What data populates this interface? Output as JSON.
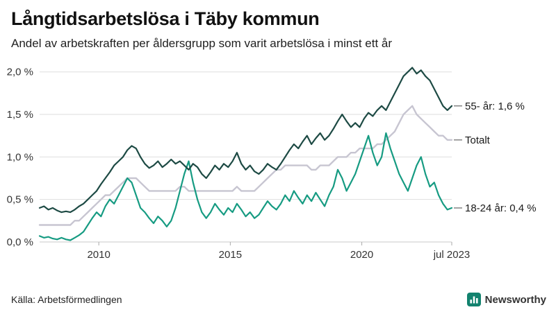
{
  "header": {
    "title": "Långtidsarbetslösa i Täby kommun",
    "subtitle": "Andel av arbetskraften per åldersgrupp som varit arbetslösa i minst ett år"
  },
  "footer": {
    "source": "Källa: Arbetsförmedlingen",
    "brand": "Newsworthy",
    "brand_color": "#12826e"
  },
  "chart_data": {
    "type": "line",
    "x_start": 2007.75,
    "x_end": 2023.42,
    "xlabel": "",
    "ylabel": "",
    "ylim": [
      0,
      2.12
    ],
    "grid": "horizontal",
    "x_ticks": [
      {
        "label": "2010",
        "x": 2010
      },
      {
        "label": "2015",
        "x": 2015
      },
      {
        "label": "2020",
        "x": 2020
      },
      {
        "label": "jul 2023",
        "x": 2023.42
      }
    ],
    "y_ticks": [
      {
        "label": "0,0 %",
        "v": 0
      },
      {
        "label": "0,5 %",
        "v": 0.5
      },
      {
        "label": "1,0 %",
        "v": 1
      },
      {
        "label": "1,5 %",
        "v": 1.5
      },
      {
        "label": "2,0 %",
        "v": 2
      }
    ],
    "series": [
      {
        "name": "55- år",
        "annotation": "55- år: 1,6 %",
        "color": "#1d4a44",
        "z": 3,
        "values": [
          0.4,
          0.42,
          0.38,
          0.4,
          0.37,
          0.35,
          0.36,
          0.35,
          0.38,
          0.42,
          0.45,
          0.5,
          0.55,
          0.6,
          0.68,
          0.75,
          0.82,
          0.9,
          0.95,
          1.0,
          1.08,
          1.13,
          1.1,
          1.0,
          0.92,
          0.87,
          0.9,
          0.95,
          0.88,
          0.92,
          0.97,
          0.92,
          0.95,
          0.9,
          0.85,
          0.92,
          0.88,
          0.8,
          0.75,
          0.82,
          0.9,
          0.85,
          0.92,
          0.88,
          0.95,
          1.05,
          0.92,
          0.85,
          0.9,
          0.83,
          0.8,
          0.85,
          0.92,
          0.88,
          0.85,
          0.92,
          1.0,
          1.08,
          1.15,
          1.1,
          1.18,
          1.25,
          1.15,
          1.22,
          1.28,
          1.2,
          1.25,
          1.33,
          1.42,
          1.5,
          1.42,
          1.35,
          1.4,
          1.35,
          1.45,
          1.52,
          1.48,
          1.55,
          1.6,
          1.55,
          1.65,
          1.75,
          1.85,
          1.95,
          2.0,
          2.05,
          1.98,
          2.02,
          1.95,
          1.9,
          1.8,
          1.7,
          1.6,
          1.55,
          1.6
        ]
      },
      {
        "name": "Totalt",
        "annotation": "Totalt",
        "color": "#c7c5d1",
        "z": 1,
        "values": [
          0.2,
          0.2,
          0.2,
          0.2,
          0.2,
          0.2,
          0.2,
          0.2,
          0.25,
          0.25,
          0.3,
          0.35,
          0.4,
          0.45,
          0.5,
          0.55,
          0.55,
          0.6,
          0.65,
          0.7,
          0.75,
          0.75,
          0.75,
          0.7,
          0.65,
          0.6,
          0.6,
          0.6,
          0.6,
          0.6,
          0.6,
          0.6,
          0.65,
          0.65,
          0.6,
          0.6,
          0.6,
          0.6,
          0.6,
          0.6,
          0.6,
          0.6,
          0.6,
          0.6,
          0.6,
          0.65,
          0.6,
          0.6,
          0.6,
          0.6,
          0.65,
          0.7,
          0.75,
          0.8,
          0.85,
          0.85,
          0.9,
          0.9,
          0.9,
          0.9,
          0.9,
          0.9,
          0.85,
          0.85,
          0.9,
          0.9,
          0.9,
          0.95,
          1.0,
          1.0,
          1.0,
          1.05,
          1.05,
          1.1,
          1.1,
          1.1,
          1.1,
          1.15,
          1.15,
          1.2,
          1.25,
          1.3,
          1.4,
          1.5,
          1.55,
          1.6,
          1.5,
          1.45,
          1.4,
          1.35,
          1.3,
          1.25,
          1.25,
          1.2,
          1.2
        ]
      },
      {
        "name": "18-24 år",
        "annotation": "18-24 år: 0,4 %",
        "color": "#169b82",
        "z": 2,
        "values": [
          0.07,
          0.05,
          0.06,
          0.04,
          0.03,
          0.05,
          0.03,
          0.02,
          0.05,
          0.08,
          0.12,
          0.2,
          0.28,
          0.35,
          0.3,
          0.42,
          0.5,
          0.45,
          0.55,
          0.65,
          0.75,
          0.7,
          0.55,
          0.4,
          0.35,
          0.28,
          0.22,
          0.3,
          0.25,
          0.18,
          0.25,
          0.4,
          0.6,
          0.8,
          0.95,
          0.7,
          0.5,
          0.35,
          0.28,
          0.35,
          0.45,
          0.38,
          0.32,
          0.4,
          0.35,
          0.45,
          0.38,
          0.3,
          0.35,
          0.28,
          0.32,
          0.4,
          0.48,
          0.42,
          0.38,
          0.45,
          0.55,
          0.48,
          0.6,
          0.52,
          0.45,
          0.55,
          0.48,
          0.58,
          0.5,
          0.42,
          0.55,
          0.65,
          0.85,
          0.75,
          0.6,
          0.7,
          0.8,
          0.95,
          1.1,
          1.25,
          1.05,
          0.9,
          1.0,
          1.28,
          1.1,
          0.95,
          0.8,
          0.7,
          0.6,
          0.75,
          0.9,
          1.0,
          0.8,
          0.65,
          0.7,
          0.55,
          0.45,
          0.38,
          0.4
        ]
      }
    ]
  }
}
